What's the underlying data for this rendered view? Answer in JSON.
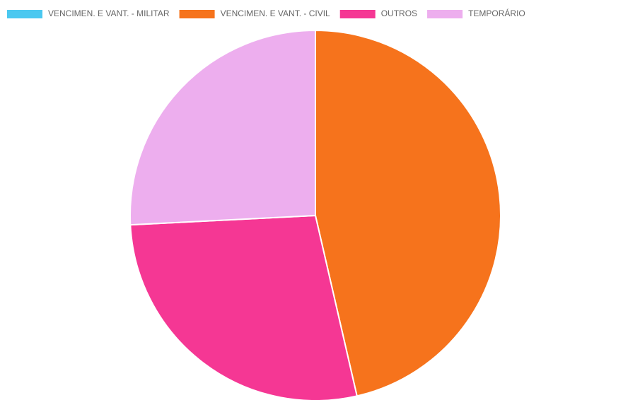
{
  "chart_data": {
    "type": "pie",
    "categories": [
      "VENCIMEN. E VANT. - MILITAR",
      "VENCIMEN. E VANT. - CIVIL",
      "OUTROS",
      "TEMPORÁRIO"
    ],
    "values": [
      0,
      46.4,
      27.8,
      25.8
    ],
    "colors": [
      "#4bc8f0",
      "#f6731c",
      "#f53794",
      "#edaeee"
    ],
    "legend": "top"
  }
}
